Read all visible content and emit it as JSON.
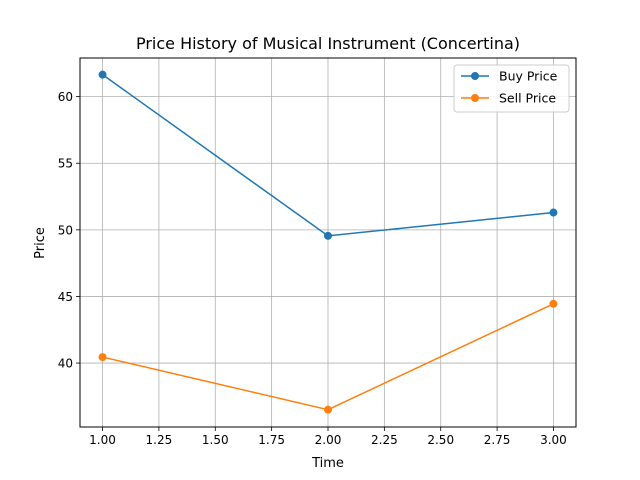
{
  "chart_data": {
    "type": "line",
    "title": "Price History of Musical Instrument (Concertina)",
    "xlabel": "Time",
    "ylabel": "Price",
    "x": [
      1,
      2,
      3
    ],
    "series": [
      {
        "name": "Buy Price",
        "values": [
          61.65,
          49.55,
          51.3
        ],
        "color": "#1f77b4"
      },
      {
        "name": "Sell Price",
        "values": [
          40.45,
          36.5,
          44.45
        ],
        "color": "#ff7f0e"
      }
    ],
    "xlim": [
      0.9,
      3.1
    ],
    "ylim": [
      35.2,
      62.9
    ],
    "xticks": [
      1.0,
      1.25,
      1.5,
      1.75,
      2.0,
      2.25,
      2.5,
      2.75,
      3.0
    ],
    "xtick_labels": [
      "1.00",
      "1.25",
      "1.50",
      "1.75",
      "2.00",
      "2.25",
      "2.50",
      "2.75",
      "3.00"
    ],
    "yticks": [
      40,
      45,
      50,
      55,
      60
    ],
    "ytick_labels": [
      "40",
      "45",
      "50",
      "55",
      "60"
    ],
    "grid": true,
    "legend_position": "top-right",
    "marker": "circle"
  }
}
